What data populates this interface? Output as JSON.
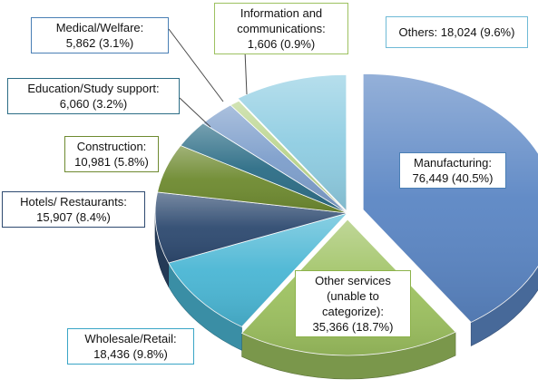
{
  "chart_data": {
    "type": "pie",
    "title": "",
    "slices": [
      {
        "label": "Manufacturing",
        "value": 76449,
        "percent": "40.5%",
        "display_value": "76,449",
        "color": "#5b86c4",
        "label_border": "#4a7fb5"
      },
      {
        "label": "Other services (unable to categorize)",
        "value": 35366,
        "percent": "18.7%",
        "display_value": "35,366",
        "color": "#9dc160",
        "label_border": "#8cb24a"
      },
      {
        "label": "Wholesale/Retail",
        "value": 18436,
        "percent": "9.8%",
        "display_value": "18,436",
        "color": "#4ab6d4",
        "label_border": "#3aa5c6"
      },
      {
        "label": "Hotels/ Restaurants",
        "value": 15907,
        "percent": "8.4%",
        "display_value": "15,907",
        "color": "#2e4a70",
        "label_border": "#2e4a70"
      },
      {
        "label": "Construction",
        "value": 10981,
        "percent": "5.8%",
        "display_value": "10,981",
        "color": "#6e8a30",
        "label_border": "#6e8a30"
      },
      {
        "label": "Education/Study support",
        "value": 6060,
        "percent": "3.2%",
        "display_value": "6,060",
        "color": "#2c6d86",
        "label_border": "#2c6d86"
      },
      {
        "label": "Medical/Welfare",
        "value": 5862,
        "percent": "3.1%",
        "display_value": "5,862",
        "color": "#7d9ecb",
        "label_border": "#4a7fb5"
      },
      {
        "label": "Information and communications",
        "value": 1606,
        "percent": "0.9%",
        "display_value": "1,606",
        "color": "#b9d48c",
        "label_border": "#9dc160"
      },
      {
        "label": "Others",
        "value": 18024,
        "percent": "9.6%",
        "display_value": "18,024",
        "color": "#8fcde2",
        "label_border": "#6fbad6"
      }
    ],
    "labels": [
      {
        "lines": [
          "Manufacturing:",
          "76,449 (40.5%)"
        ]
      },
      {
        "lines": [
          "Other services",
          "(unable to",
          "categorize):",
          "35,366 (18.7%)"
        ]
      },
      {
        "lines": [
          "Wholesale/Retail:",
          "18,436 (9.8%)"
        ]
      },
      {
        "lines": [
          "Hotels/ Restaurants:",
          "15,907 (8.4%)"
        ]
      },
      {
        "lines": [
          "Construction:",
          "10,981 (5.8%)"
        ]
      },
      {
        "lines": [
          "Education/Study support:",
          "6,060 (3.2%)"
        ]
      },
      {
        "lines": [
          "Medical/Welfare:",
          "5,862 (3.1%)"
        ]
      },
      {
        "lines": [
          "Information and",
          "communications:",
          "1,606 (0.9%)"
        ]
      },
      {
        "lines": [
          "Others: 18,024 (9.6%)"
        ]
      }
    ]
  }
}
